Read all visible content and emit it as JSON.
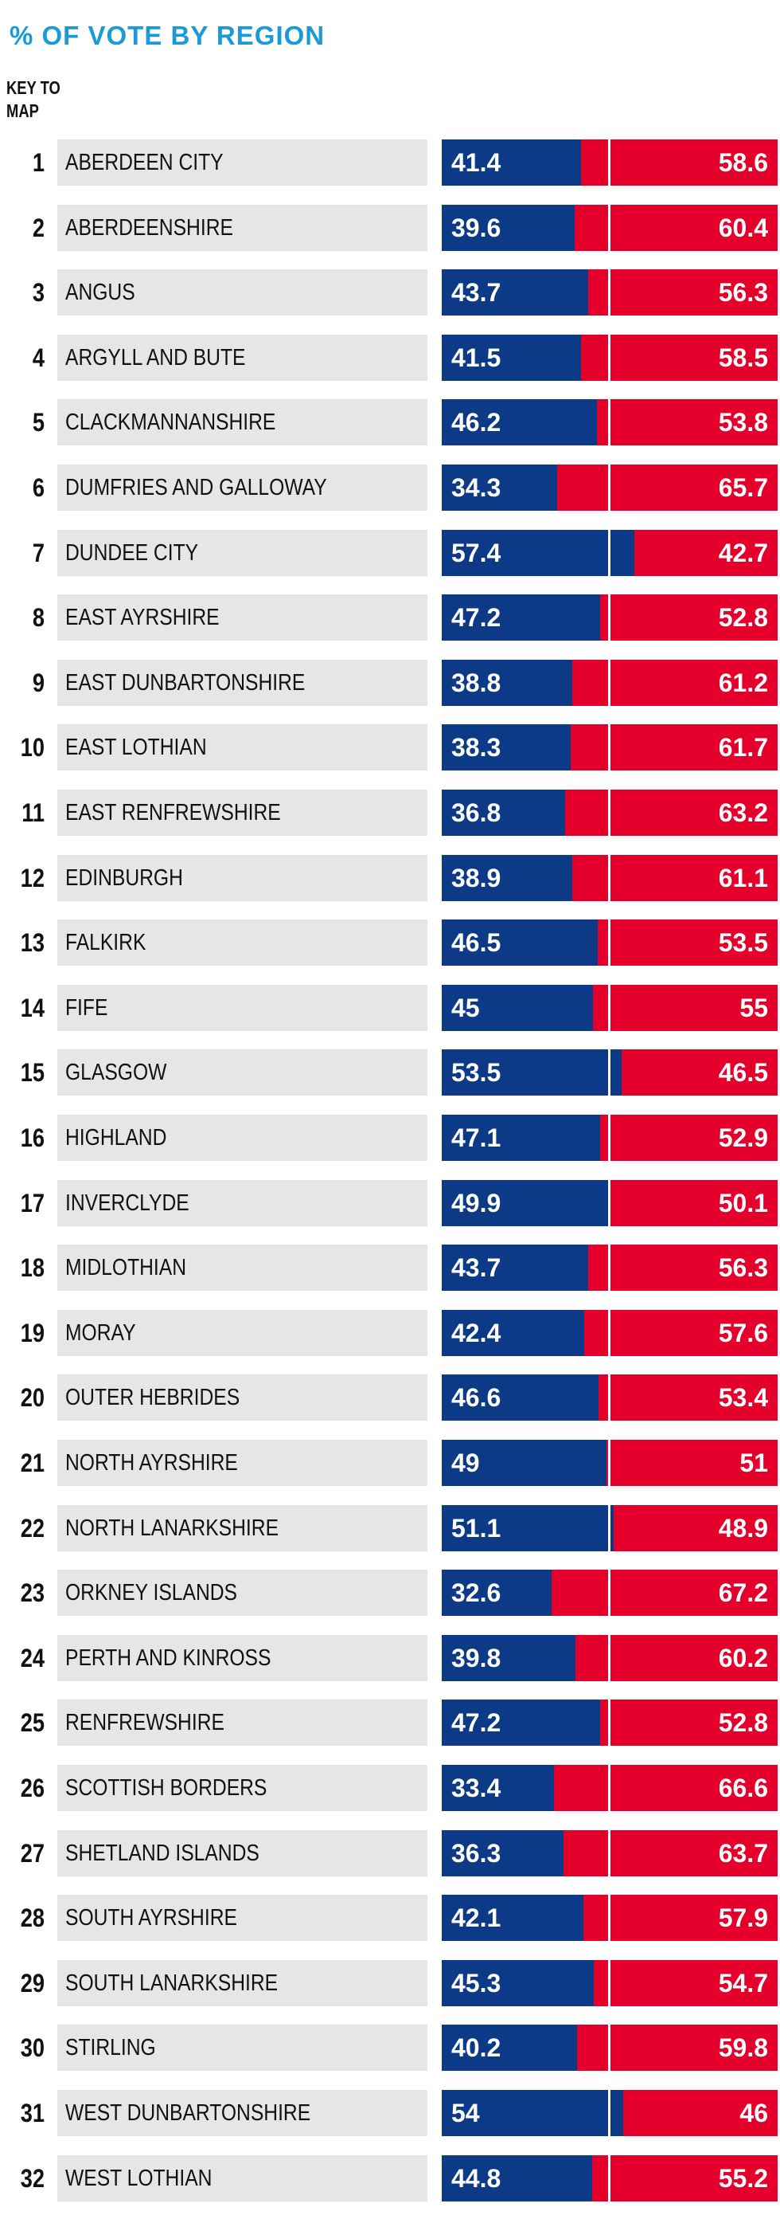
{
  "chart_data": {
    "type": "bar",
    "stacked": true,
    "orientation": "horizontal",
    "title": "% OF VOTE BY REGION",
    "key_label": [
      "KEY TO",
      "MAP"
    ],
    "xlim": [
      0,
      100
    ],
    "colors": {
      "first": "#0d3a87",
      "second": "#e4002b",
      "title": "#1a9ad6",
      "label_bg": "#e6e6e6"
    },
    "categories": [
      {
        "key": "1",
        "name": "ABERDEEN CITY",
        "yes": "41.4",
        "no": "58.6"
      },
      {
        "key": "2",
        "name": "ABERDEENSHIRE",
        "yes": "39.6",
        "no": "60.4"
      },
      {
        "key": "3",
        "name": "ANGUS",
        "yes": "43.7",
        "no": "56.3"
      },
      {
        "key": "4",
        "name": "ARGYLL AND BUTE",
        "yes": "41.5",
        "no": "58.5"
      },
      {
        "key": "5",
        "name": "CLACKMANNANSHIRE",
        "yes": "46.2",
        "no": "53.8"
      },
      {
        "key": "6",
        "name": "DUMFRIES AND GALLOWAY",
        "yes": "34.3",
        "no": "65.7"
      },
      {
        "key": "7",
        "name": "DUNDEE CITY",
        "yes": "57.4",
        "no": "42.7"
      },
      {
        "key": "8",
        "name": "EAST AYRSHIRE",
        "yes": "47.2",
        "no": "52.8"
      },
      {
        "key": "9",
        "name": "EAST DUNBARTONSHIRE",
        "yes": "38.8",
        "no": "61.2"
      },
      {
        "key": "10",
        "name": "EAST LOTHIAN",
        "yes": "38.3",
        "no": "61.7"
      },
      {
        "key": "11",
        "name": "EAST RENFREWSHIRE",
        "yes": "36.8",
        "no": "63.2"
      },
      {
        "key": "12",
        "name": "EDINBURGH",
        "yes": "38.9",
        "no": "61.1"
      },
      {
        "key": "13",
        "name": "FALKIRK",
        "yes": "46.5",
        "no": "53.5"
      },
      {
        "key": "14",
        "name": "FIFE",
        "yes": "45",
        "no": "55"
      },
      {
        "key": "15",
        "name": "GLASGOW",
        "yes": "53.5",
        "no": "46.5"
      },
      {
        "key": "16",
        "name": "HIGHLAND",
        "yes": "47.1",
        "no": "52.9"
      },
      {
        "key": "17",
        "name": "INVERCLYDE",
        "yes": "49.9",
        "no": "50.1"
      },
      {
        "key": "18",
        "name": "MIDLOTHIAN",
        "yes": "43.7",
        "no": "56.3"
      },
      {
        "key": "19",
        "name": "MORAY",
        "yes": "42.4",
        "no": "57.6"
      },
      {
        "key": "20",
        "name": "OUTER HEBRIDES",
        "yes": "46.6",
        "no": "53.4"
      },
      {
        "key": "21",
        "name": "NORTH AYRSHIRE",
        "yes": "49",
        "no": "51"
      },
      {
        "key": "22",
        "name": "NORTH LANARKSHIRE",
        "yes": "51.1",
        "no": "48.9"
      },
      {
        "key": "23",
        "name": "ORKNEY ISLANDS",
        "yes": "32.6",
        "no": "67.2"
      },
      {
        "key": "24",
        "name": "PERTH AND KINROSS",
        "yes": "39.8",
        "no": "60.2"
      },
      {
        "key": "25",
        "name": "RENFREWSHIRE",
        "yes": "47.2",
        "no": "52.8"
      },
      {
        "key": "26",
        "name": "SCOTTISH BORDERS",
        "yes": "33.4",
        "no": "66.6"
      },
      {
        "key": "27",
        "name": "SHETLAND ISLANDS",
        "yes": "36.3",
        "no": "63.7"
      },
      {
        "key": "28",
        "name": "SOUTH AYRSHIRE",
        "yes": "42.1",
        "no": "57.9"
      },
      {
        "key": "29",
        "name": "SOUTH LANARKSHIRE",
        "yes": "45.3",
        "no": "54.7"
      },
      {
        "key": "30",
        "name": "STIRLING",
        "yes": "40.2",
        "no": "59.8"
      },
      {
        "key": "31",
        "name": "WEST DUNBARTONSHIRE",
        "yes": "54",
        "no": "46"
      },
      {
        "key": "32",
        "name": "WEST LOTHIAN",
        "yes": "44.8",
        "no": "55.2"
      }
    ]
  }
}
